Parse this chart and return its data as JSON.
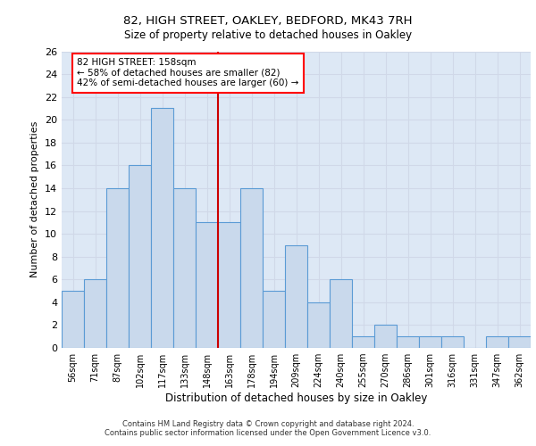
{
  "title_line1": "82, HIGH STREET, OAKLEY, BEDFORD, MK43 7RH",
  "title_line2": "Size of property relative to detached houses in Oakley",
  "xlabel": "Distribution of detached houses by size in Oakley",
  "ylabel": "Number of detached properties",
  "footer_line1": "Contains HM Land Registry data © Crown copyright and database right 2024.",
  "footer_line2": "Contains public sector information licensed under the Open Government Licence v3.0.",
  "categories": [
    "56sqm",
    "71sqm",
    "87sqm",
    "102sqm",
    "117sqm",
    "133sqm",
    "148sqm",
    "163sqm",
    "178sqm",
    "194sqm",
    "209sqm",
    "224sqm",
    "240sqm",
    "255sqm",
    "270sqm",
    "286sqm",
    "301sqm",
    "316sqm",
    "331sqm",
    "347sqm",
    "362sqm"
  ],
  "values": [
    5,
    6,
    14,
    16,
    21,
    14,
    11,
    11,
    14,
    5,
    9,
    4,
    6,
    1,
    2,
    1,
    1,
    1,
    0,
    1,
    1
  ],
  "bar_color": "#c9d9ec",
  "bar_edge_color": "#5b9bd5",
  "grid_color": "#d0d8e8",
  "background_color": "#dde8f5",
  "annotation_text": "82 HIGH STREET: 158sqm\n← 58% of detached houses are smaller (82)\n42% of semi-detached houses are larger (60) →",
  "annotation_box_color": "white",
  "annotation_box_edge_color": "red",
  "vline_color": "#cc0000",
  "vline_x_index": 7,
  "ylim": [
    0,
    26
  ],
  "yticks": [
    0,
    2,
    4,
    6,
    8,
    10,
    12,
    14,
    16,
    18,
    20,
    22,
    24,
    26
  ]
}
